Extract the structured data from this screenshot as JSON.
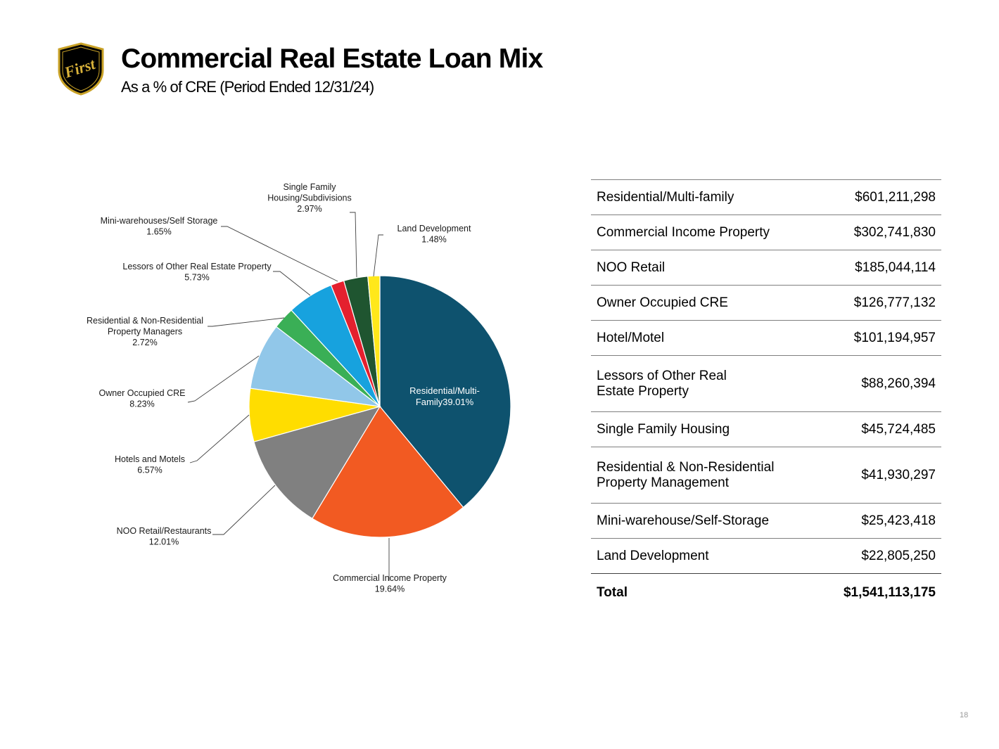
{
  "header": {
    "logo_text": "First",
    "title": "Commercial Real Estate Loan Mix",
    "subtitle": "As a % of CRE (Period Ended 12/31/24)"
  },
  "chart_data": {
    "type": "pie",
    "title": "",
    "slices": [
      {
        "label": "Residential/Multi-Family",
        "value": 39.01,
        "display": "Residential/Multi-Family39.01%",
        "color": "#0e526e"
      },
      {
        "label": "Commercial Income Property",
        "value": 19.64,
        "display": "19.64%",
        "color": "#f25a22"
      },
      {
        "label": "NOO Retail/Restaurants",
        "value": 12.01,
        "display": "12.01%",
        "color": "#808080"
      },
      {
        "label": "Hotels and Motels",
        "value": 6.57,
        "display": "6.57%",
        "color": "#ffdd00"
      },
      {
        "label": "Owner Occupied CRE",
        "value": 8.23,
        "display": "8.23%",
        "color": "#91c7e9"
      },
      {
        "label": "Residential & Non-Residential Property Managers",
        "value": 2.72,
        "display": "2.72%",
        "color": "#3aaf56"
      },
      {
        "label": "Lessors of Other Real Estate Property",
        "value": 5.73,
        "display": "5.73%",
        "color": "#17a2de"
      },
      {
        "label": "Mini-warehouses/Self Storage",
        "value": 1.65,
        "display": "1.65%",
        "color": "#e4202e"
      },
      {
        "label": "Single Family Housing/Subdivisions",
        "value": 2.97,
        "display": "2.97%",
        "color": "#1f5530"
      },
      {
        "label": "Land Development",
        "value": 1.48,
        "display": "1.48%",
        "color": "#ffe81a"
      }
    ],
    "inside_label": [
      "Residential/Multi-",
      "Family39.01%"
    ],
    "outside_labels": [
      {
        "lines": [
          "Commercial Income Property",
          "19.64%"
        ]
      },
      {
        "lines": [
          "NOO Retail/Restaurants",
          "12.01%"
        ]
      },
      {
        "lines": [
          "Hotels and Motels",
          "6.57%"
        ]
      },
      {
        "lines": [
          "Owner Occupied CRE",
          "8.23%"
        ]
      },
      {
        "lines": [
          "Residential & Non-Residential",
          "Property Managers",
          "2.72%"
        ]
      },
      {
        "lines": [
          "Lessors of Other Real Estate Property",
          "5.73%"
        ]
      },
      {
        "lines": [
          "Mini-warehouses/Self Storage",
          "1.65%"
        ]
      },
      {
        "lines": [
          "Single Family",
          "Housing/Subdivisions",
          "2.97%"
        ]
      },
      {
        "lines": [
          "Land Development",
          "1.48%"
        ]
      }
    ]
  },
  "table": {
    "rows": [
      {
        "label": "Residential/Multi-family",
        "amount": "$601,211,298"
      },
      {
        "label": "Commercial Income Property",
        "amount": "$302,741,830"
      },
      {
        "label": "NOO Retail",
        "amount": "$185,044,114"
      },
      {
        "label": "Owner Occupied CRE",
        "amount": "$126,777,132"
      },
      {
        "label": "Hotel/Motel",
        "amount": "$101,194,957"
      },
      {
        "label_lines": [
          "Lessors of Other Real",
          "Estate Property"
        ],
        "amount": "$88,260,394"
      },
      {
        "label": "Single Family Housing",
        "amount": "$45,724,485"
      },
      {
        "label_lines": [
          "Residential & Non-Residential",
          "Property Management"
        ],
        "amount": "$41,930,297"
      },
      {
        "label": "Mini-warehouse/Self-Storage",
        "amount": "$25,423,418"
      },
      {
        "label": "Land Development",
        "amount": "$22,805,250"
      }
    ],
    "total": {
      "label": "Total",
      "amount": "$1,541,113,175"
    }
  },
  "page_number": "18"
}
